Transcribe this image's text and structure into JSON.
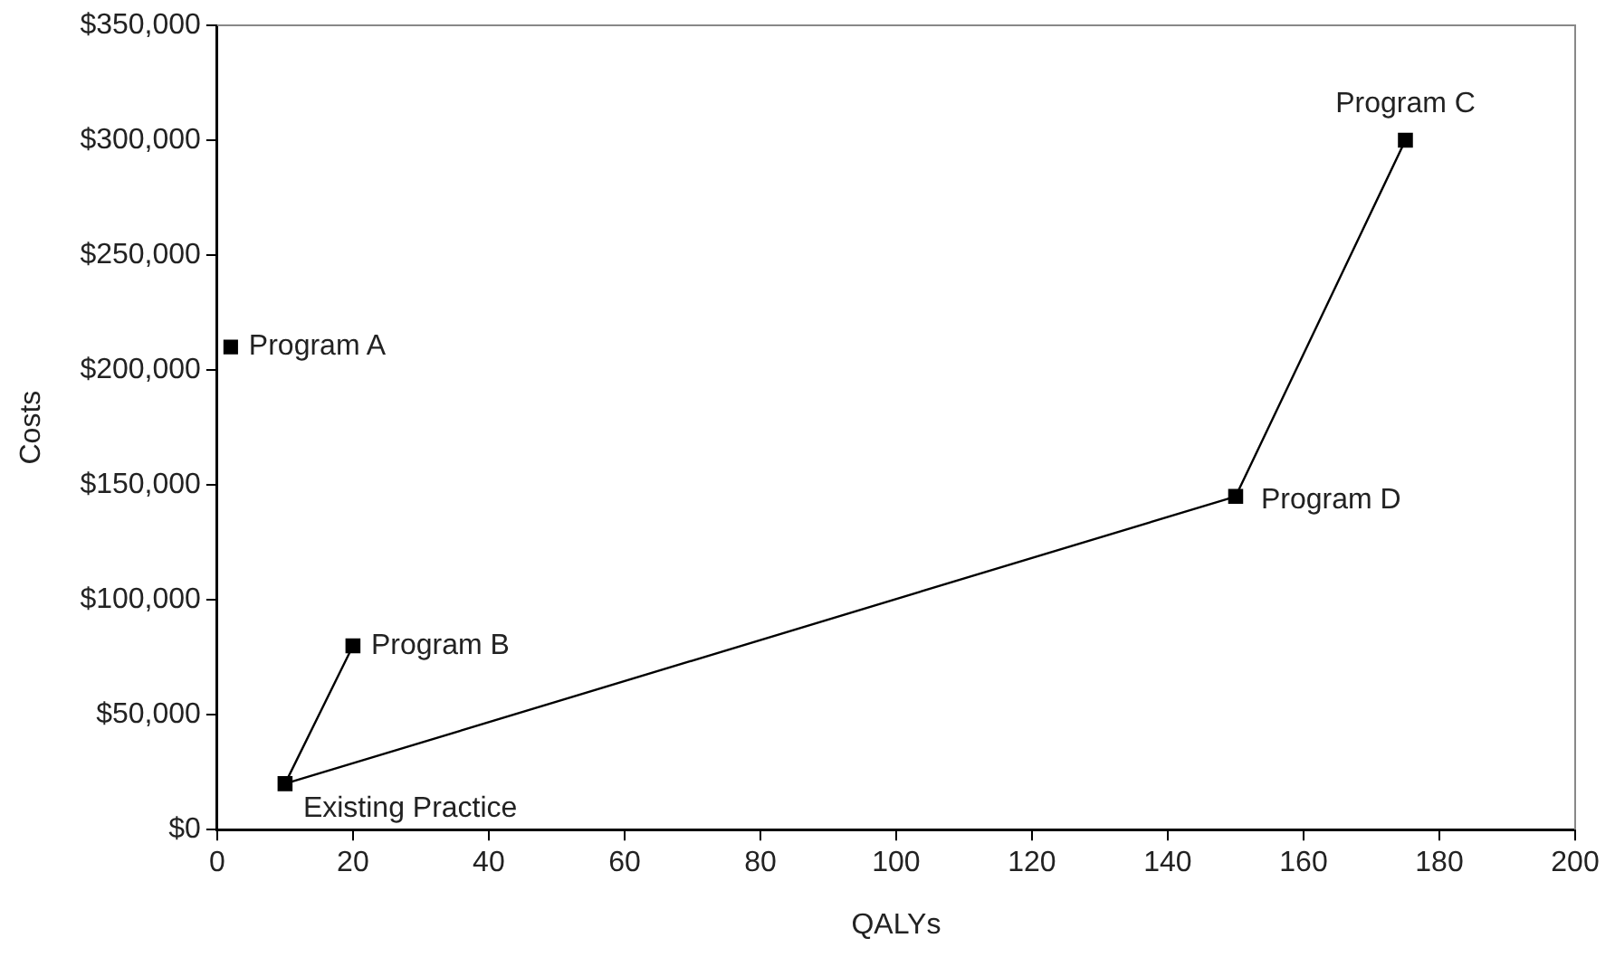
{
  "chart_data": {
    "type": "scatter",
    "xlabel": "QALYs",
    "ylabel": "Costs",
    "xlim": [
      0,
      200
    ],
    "xticks": [
      0,
      20,
      40,
      60,
      80,
      100,
      120,
      140,
      160,
      180,
      200
    ],
    "ylim": [
      0,
      350000
    ],
    "yticks": [
      {
        "value": 0,
        "label": "$0"
      },
      {
        "value": 50000,
        "label": "$50,000"
      },
      {
        "value": 100000,
        "label": "$100,000"
      },
      {
        "value": 150000,
        "label": "$150,000"
      },
      {
        "value": 200000,
        "label": "$200,000"
      },
      {
        "value": 250000,
        "label": "$250,000"
      },
      {
        "value": 300000,
        "label": "$300,000"
      },
      {
        "value": 350000,
        "label": "$350,000"
      }
    ],
    "series": [
      {
        "type": "line",
        "color": "#000000",
        "x": [
          20,
          10,
          150,
          175
        ],
        "values": [
          80000,
          20000,
          145000,
          300000
        ]
      },
      {
        "type": "scatter",
        "color": "#000000",
        "x": [
          2
        ],
        "values": [
          210000
        ]
      }
    ],
    "marker": "square",
    "grid": false,
    "legend": false,
    "annotations": [
      {
        "text": "Program A",
        "x": 2,
        "y": 210000
      },
      {
        "text": "Program B",
        "x": 20,
        "y": 80000
      },
      {
        "text": "Existing Practice",
        "x": 10,
        "y": 20000
      },
      {
        "text": "Program D",
        "x": 150,
        "y": 145000
      },
      {
        "text": "Program C",
        "x": 175,
        "y": 300000
      }
    ]
  }
}
